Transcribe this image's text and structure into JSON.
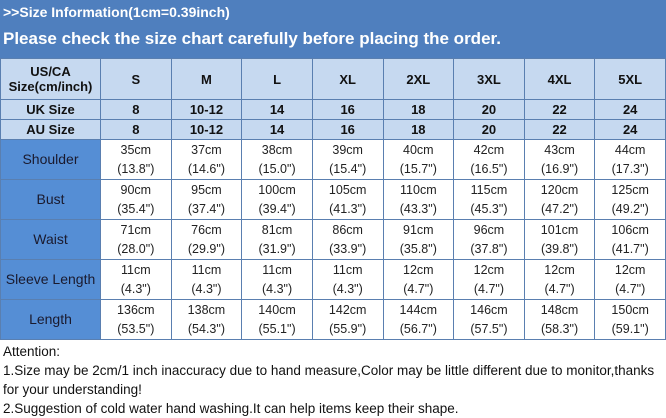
{
  "banner": {
    "line1": ">>Size Information(1cm=0.39inch)",
    "line2": "Please check the size chart carefully before placing the order."
  },
  "colors": {
    "banner": "#4f7fbe",
    "header_cells": "#c6d9f0",
    "label_cells": "#558ed5"
  },
  "table": {
    "corner_line1": "US/CA",
    "corner_line2": "Size(cm/inch)",
    "sizes": [
      "S",
      "M",
      "L",
      "XL",
      "2XL",
      "3XL",
      "4XL",
      "5XL"
    ],
    "uk": {
      "label": "UK  Size",
      "values": [
        "8",
        "10-12",
        "14",
        "16",
        "18",
        "20",
        "22",
        "24"
      ]
    },
    "au": {
      "label": "AU  Size",
      "values": [
        "8",
        "10-12",
        "14",
        "16",
        "18",
        "20",
        "22",
        "24"
      ]
    },
    "rows": [
      {
        "label": "Shoulder",
        "cm": [
          "35cm",
          "37cm",
          "38cm",
          "39cm",
          "40cm",
          "42cm",
          "43cm",
          "44cm"
        ],
        "inch": [
          "(13.8\")",
          "(14.6\")",
          "(15.0\")",
          "(15.4\")",
          "(15.7\")",
          "(16.5\")",
          "(16.9\")",
          "(17.3\")"
        ]
      },
      {
        "label": "Bust",
        "cm": [
          "90cm",
          "95cm",
          "100cm",
          "105cm",
          "110cm",
          "115cm",
          "120cm",
          "125cm"
        ],
        "inch": [
          "(35.4\")",
          "(37.4\")",
          "(39.4\")",
          "(41.3\")",
          "(43.3\")",
          "(45.3\")",
          "(47.2\")",
          "(49.2\")"
        ]
      },
      {
        "label": "Waist",
        "cm": [
          "71cm",
          "76cm",
          "81cm",
          "86cm",
          "91cm",
          "96cm",
          "101cm",
          "106cm"
        ],
        "inch": [
          "(28.0\")",
          "(29.9\")",
          "(31.9\")",
          "(33.9\")",
          "(35.8\")",
          "(37.8\")",
          "(39.8\")",
          "(41.7\")"
        ]
      },
      {
        "label": "Sleeve Length",
        "cm": [
          "11cm",
          "11cm",
          "11cm",
          "11cm",
          "12cm",
          "12cm",
          "12cm",
          "12cm"
        ],
        "inch": [
          "(4.3\")",
          "(4.3\")",
          "(4.3\")",
          "(4.3\")",
          "(4.7\")",
          "(4.7\")",
          "(4.7\")",
          "(4.7\")"
        ]
      },
      {
        "label": "Length",
        "cm": [
          "136cm",
          "138cm",
          "140cm",
          "142cm",
          "144cm",
          "146cm",
          "148cm",
          "150cm"
        ],
        "inch": [
          "(53.5\")",
          "(54.3\")",
          "(55.1\")",
          "(55.9\")",
          "(56.7\")",
          "(57.5\")",
          "(58.3\")",
          "(59.1\")"
        ]
      }
    ]
  },
  "attention": {
    "title": "Attention:",
    "line1": "1.Size may be 2cm/1 inch inaccuracy due to hand measure,Color may be little different due to monitor,thanks for your understanding!",
    "line2": "2.Suggestion of cold water hand washing.It can help items keep their shape."
  }
}
